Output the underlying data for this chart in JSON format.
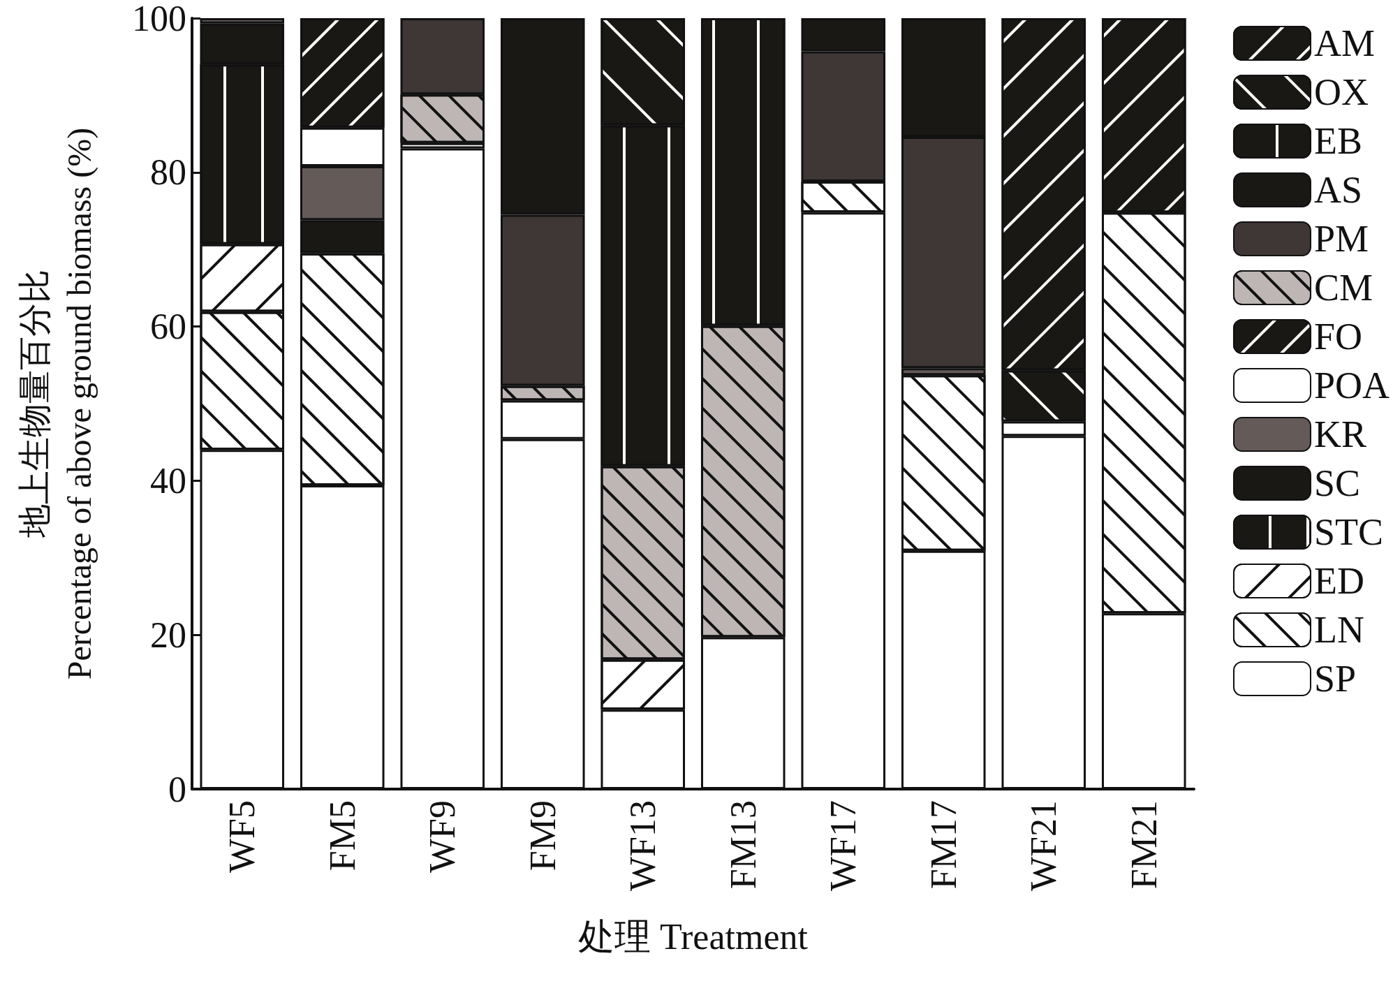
{
  "chart_data": {
    "type": "bar",
    "stacked": true,
    "xlabel": "处理 Treatment",
    "ylabel": "地上生物量百分比\nPercentage of above ground biomass (%)",
    "categories": [
      "WF5",
      "FM5",
      "WF9",
      "FM9",
      "WF13",
      "FM13",
      "WF17",
      "FM17",
      "WF21",
      "FM21"
    ],
    "ylim": [
      0,
      100
    ],
    "yticks": [
      0,
      20,
      40,
      60,
      80,
      100
    ],
    "grid": false,
    "legend": "right",
    "series": [
      {
        "name": "SP",
        "color": "#ffffff",
        "values": [
          44.0,
          39.4,
          83.1,
          45.4,
          10.3,
          19.7,
          74.8,
          30.9,
          45.8,
          22.8
        ]
      },
      {
        "name": "LN",
        "color": "#ffffff",
        "values": [
          17.9,
          30.1,
          null,
          null,
          null,
          null,
          4.0,
          22.8,
          null,
          52.0
        ]
      },
      {
        "name": "ED",
        "color": "#ffffff",
        "values": [
          8.8,
          null,
          null,
          null,
          6.5,
          null,
          null,
          null,
          null,
          null
        ]
      },
      {
        "name": "STC",
        "color": "#1a1814",
        "values": [
          23.3,
          null,
          null,
          null,
          null,
          null,
          null,
          null,
          null,
          null
        ]
      },
      {
        "name": "SC",
        "color": "#1a1814",
        "values": [
          5.3,
          4.3,
          null,
          null,
          null,
          null,
          null,
          null,
          null,
          null
        ]
      },
      {
        "name": "KR",
        "color": "#645b59",
        "values": [
          0.7,
          7.0,
          null,
          null,
          null,
          null,
          null,
          0.9,
          null,
          null
        ]
      },
      {
        "name": "POA",
        "color": "#ffffff",
        "values": [
          null,
          5.0,
          0.7,
          5.0,
          null,
          null,
          null,
          null,
          1.9,
          null
        ]
      },
      {
        "name": "FO",
        "color": "#1a1814",
        "values": [
          null,
          14.2,
          null,
          null,
          null,
          null,
          null,
          null,
          null,
          null
        ]
      },
      {
        "name": "CM",
        "color": "#bdb6b5",
        "values": [
          null,
          null,
          6.3,
          1.9,
          25.1,
          40.4,
          null,
          null,
          null,
          null
        ]
      },
      {
        "name": "PM",
        "color": "#3e3735",
        "values": [
          null,
          null,
          9.9,
          22.2,
          null,
          null,
          16.9,
          30.0,
          null,
          null
        ]
      },
      {
        "name": "AS",
        "color": "#1a1814",
        "values": [
          null,
          null,
          null,
          25.5,
          null,
          null,
          4.3,
          15.4,
          null,
          null
        ]
      },
      {
        "name": "EB",
        "color": "#1a1814",
        "values": [
          null,
          null,
          null,
          null,
          44.2,
          39.9,
          null,
          null,
          null,
          null
        ]
      },
      {
        "name": "OX",
        "color": "#1a1814",
        "values": [
          null,
          null,
          null,
          null,
          13.9,
          null,
          null,
          null,
          6.6,
          null
        ]
      },
      {
        "name": "AM",
        "color": "#1a1814",
        "values": [
          null,
          null,
          null,
          null,
          null,
          null,
          null,
          null,
          45.7,
          25.2
        ]
      }
    ]
  }
}
